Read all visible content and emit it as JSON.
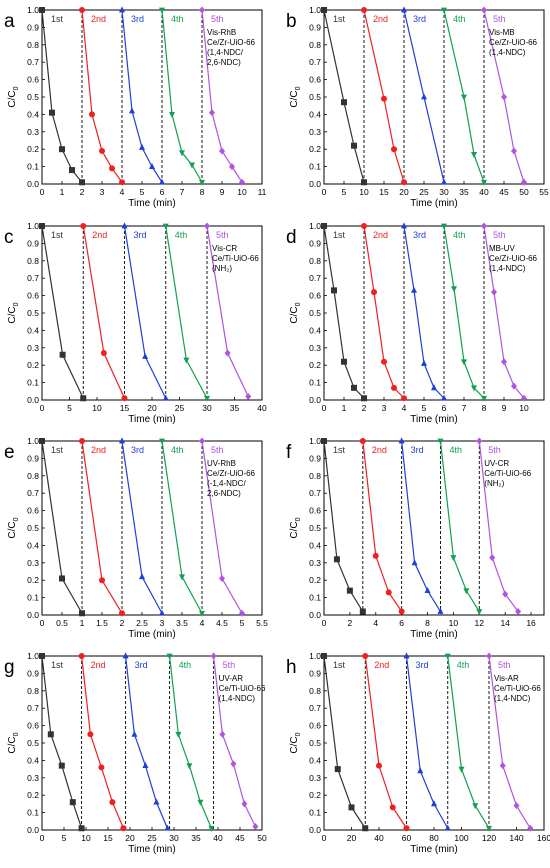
{
  "figure": {
    "ylabel_main": "C/C",
    "ylabel_sub": "0",
    "xlabel": "Time (min)",
    "cycle_labels": [
      "1st",
      "2nd",
      "3rd",
      "4th",
      "5th"
    ],
    "series_colors": [
      "#333333",
      "#ee2020",
      "#1f3fd8",
      "#11a050",
      "#b054e0"
    ],
    "marker_shapes": [
      "square",
      "circle",
      "triangle-up",
      "triangle-down",
      "diamond"
    ]
  },
  "chart_data": [
    {
      "type": "line",
      "panel_letter": "a",
      "xlim": [
        0,
        11
      ],
      "ylim": [
        0,
        1.0
      ],
      "xticks": [
        0,
        1,
        2,
        3,
        4,
        5,
        6,
        7,
        8,
        9,
        10,
        11
      ],
      "yticks": [
        0,
        0.1,
        0.2,
        0.3,
        0.4,
        0.5,
        0.6,
        0.7,
        0.8,
        0.9,
        1.0
      ],
      "annotation": [
        "Vis-RhB",
        "Ce/Zr-UiO-66",
        "(1,4-NDC/",
        "2,6-NDC)"
      ],
      "dividers": [
        2,
        4,
        6,
        8
      ],
      "series": [
        {
          "x": [
            0,
            0.5,
            1,
            1.5,
            2
          ],
          "y": [
            1.0,
            0.41,
            0.2,
            0.08,
            0.01
          ]
        },
        {
          "x": [
            2,
            2.5,
            3,
            3.5,
            4
          ],
          "y": [
            1.0,
            0.4,
            0.19,
            0.09,
            0.01
          ]
        },
        {
          "x": [
            4,
            4.5,
            5,
            5.5,
            6
          ],
          "y": [
            1.0,
            0.42,
            0.21,
            0.1,
            0.01
          ]
        },
        {
          "x": [
            6,
            6.5,
            7,
            7.5,
            8
          ],
          "y": [
            1.0,
            0.4,
            0.18,
            0.11,
            0.01
          ]
        },
        {
          "x": [
            8,
            8.5,
            9,
            9.5,
            10
          ],
          "y": [
            1.0,
            0.41,
            0.19,
            0.1,
            0.01
          ]
        }
      ]
    },
    {
      "type": "line",
      "panel_letter": "b",
      "xlim": [
        0,
        55
      ],
      "ylim": [
        0,
        1.0
      ],
      "xticks": [
        0,
        5,
        10,
        15,
        20,
        25,
        30,
        35,
        40,
        45,
        50,
        55
      ],
      "yticks": [
        0,
        0.1,
        0.2,
        0.3,
        0.4,
        0.5,
        0.6,
        0.7,
        0.8,
        0.9,
        1.0
      ],
      "annotation": [
        "Vis-MB",
        "Ce/Zr-UiO-66",
        "(1,4-NDC)"
      ],
      "dividers": [
        10,
        20,
        30,
        40
      ],
      "series": [
        {
          "x": [
            0,
            5,
            7.5,
            10
          ],
          "y": [
            1.0,
            0.47,
            0.22,
            0.01
          ]
        },
        {
          "x": [
            10,
            15,
            17.5,
            20
          ],
          "y": [
            1.0,
            0.49,
            0.2,
            0.01
          ]
        },
        {
          "x": [
            20,
            25,
            30
          ],
          "y": [
            1.0,
            0.5,
            0.01
          ]
        },
        {
          "x": [
            30,
            35,
            37.5,
            40
          ],
          "y": [
            1.0,
            0.5,
            0.17,
            0.01
          ]
        },
        {
          "x": [
            40,
            45,
            47.5,
            50
          ],
          "y": [
            1.0,
            0.5,
            0.19,
            0.01
          ]
        }
      ]
    },
    {
      "type": "line",
      "panel_letter": "c",
      "xlim": [
        0,
        40
      ],
      "ylim": [
        0,
        1.0
      ],
      "xticks": [
        0,
        5,
        10,
        15,
        20,
        25,
        30,
        35,
        40
      ],
      "yticks": [
        0,
        0.1,
        0.2,
        0.3,
        0.4,
        0.5,
        0.6,
        0.7,
        0.8,
        0.9,
        1.0
      ],
      "annotation": [
        "Vis-CR",
        "Ce/Ti-UiO-66",
        "(NH₂)"
      ],
      "dividers": [
        7.5,
        15,
        22.5,
        30
      ],
      "series": [
        {
          "x": [
            0,
            3.75,
            7.5
          ],
          "y": [
            1.0,
            0.26,
            0.01
          ]
        },
        {
          "x": [
            7.5,
            11.25,
            15
          ],
          "y": [
            1.0,
            0.27,
            0.01
          ]
        },
        {
          "x": [
            15,
            18.75,
            22.5
          ],
          "y": [
            1.0,
            0.25,
            0.01
          ]
        },
        {
          "x": [
            22.5,
            26.25,
            30
          ],
          "y": [
            1.0,
            0.23,
            0.01
          ]
        },
        {
          "x": [
            30,
            33.75,
            37.5
          ],
          "y": [
            1.0,
            0.27,
            0.02
          ]
        }
      ]
    },
    {
      "type": "line",
      "panel_letter": "d",
      "xlim": [
        0,
        11
      ],
      "ylim": [
        0,
        1.0
      ],
      "xticks": [
        0,
        1,
        2,
        3,
        4,
        5,
        6,
        7,
        8,
        9,
        10
      ],
      "yticks": [
        0,
        0.1,
        0.2,
        0.3,
        0.4,
        0.5,
        0.6,
        0.7,
        0.8,
        0.9,
        1.0
      ],
      "annotation": [
        "MB-UV",
        "Ce/Zr-UiO-66",
        "(1,4-NDC)"
      ],
      "dividers": [
        2,
        4,
        6,
        8
      ],
      "series": [
        {
          "x": [
            0,
            0.5,
            1,
            1.5,
            2
          ],
          "y": [
            1.0,
            0.63,
            0.22,
            0.07,
            0.01
          ]
        },
        {
          "x": [
            2,
            2.5,
            3,
            3.5,
            4
          ],
          "y": [
            1.0,
            0.62,
            0.22,
            0.07,
            0.01
          ]
        },
        {
          "x": [
            4,
            4.5,
            5,
            5.5,
            6
          ],
          "y": [
            1.0,
            0.63,
            0.21,
            0.07,
            0.01
          ]
        },
        {
          "x": [
            6,
            6.5,
            7,
            7.5,
            8
          ],
          "y": [
            1.0,
            0.64,
            0.22,
            0.07,
            0.01
          ]
        },
        {
          "x": [
            8,
            8.5,
            9,
            9.5,
            10
          ],
          "y": [
            1.0,
            0.62,
            0.22,
            0.08,
            0.01
          ]
        }
      ]
    },
    {
      "type": "line",
      "panel_letter": "e",
      "xlim": [
        0,
        5.5
      ],
      "ylim": [
        0,
        1.0
      ],
      "xticks": [
        0,
        0.5,
        1,
        1.5,
        2,
        2.5,
        3,
        3.5,
        4,
        4.5,
        5,
        5.5
      ],
      "yticks": [
        0,
        0.1,
        0.2,
        0.3,
        0.4,
        0.5,
        0.6,
        0.7,
        0.8,
        0.9,
        1.0
      ],
      "annotation": [
        "UV-RhB",
        "Ce/Zr-UiO-66",
        "(-1,4-NDC/",
        "2,6-NDC)"
      ],
      "dividers": [
        1,
        2,
        3,
        4
      ],
      "series": [
        {
          "x": [
            0,
            0.5,
            1
          ],
          "y": [
            1.0,
            0.21,
            0.01
          ]
        },
        {
          "x": [
            1,
            1.5,
            2
          ],
          "y": [
            1.0,
            0.2,
            0.01
          ]
        },
        {
          "x": [
            2,
            2.5,
            3
          ],
          "y": [
            1.0,
            0.22,
            0.01
          ]
        },
        {
          "x": [
            3,
            3.5,
            4
          ],
          "y": [
            1.0,
            0.22,
            0.01
          ]
        },
        {
          "x": [
            4,
            4.5,
            5
          ],
          "y": [
            1.0,
            0.21,
            0.01
          ]
        }
      ]
    },
    {
      "type": "line",
      "panel_letter": "f",
      "xlim": [
        0,
        17
      ],
      "ylim": [
        0,
        1.0
      ],
      "xticks": [
        0,
        2,
        4,
        6,
        8,
        10,
        12,
        14,
        16
      ],
      "yticks": [
        0,
        0.1,
        0.2,
        0.3,
        0.4,
        0.5,
        0.6,
        0.7,
        0.8,
        0.9,
        1.0
      ],
      "annotation": [
        "UV-CR",
        "Ce/Ti-UiO-66",
        "(NH₂)"
      ],
      "dividers": [
        3,
        6,
        9,
        12
      ],
      "series": [
        {
          "x": [
            0,
            1,
            2,
            3
          ],
          "y": [
            1.0,
            0.32,
            0.14,
            0.02
          ]
        },
        {
          "x": [
            3,
            4,
            5,
            6
          ],
          "y": [
            1.0,
            0.34,
            0.13,
            0.02
          ]
        },
        {
          "x": [
            6,
            7,
            8,
            9
          ],
          "y": [
            1.0,
            0.3,
            0.14,
            0.02
          ]
        },
        {
          "x": [
            9,
            10,
            11,
            12
          ],
          "y": [
            1.0,
            0.33,
            0.14,
            0.02
          ]
        },
        {
          "x": [
            12,
            13,
            14,
            15
          ],
          "y": [
            1.0,
            0.33,
            0.12,
            0.02
          ]
        }
      ]
    },
    {
      "type": "line",
      "panel_letter": "g",
      "xlim": [
        0,
        50
      ],
      "ylim": [
        0,
        1.0
      ],
      "xticks": [
        0,
        5,
        10,
        15,
        20,
        25,
        30,
        35,
        40,
        45,
        50
      ],
      "yticks": [
        0,
        0.1,
        0.2,
        0.3,
        0.4,
        0.5,
        0.6,
        0.7,
        0.8,
        0.9,
        1.0
      ],
      "annotation": [
        "UV-AR",
        "Ce/Ti-UiO-66",
        "(1,4-NDC)"
      ],
      "dividers": [
        9,
        19,
        29,
        39
      ],
      "series": [
        {
          "x": [
            0,
            2,
            4.5,
            7,
            9
          ],
          "y": [
            1.0,
            0.55,
            0.37,
            0.16,
            0.01
          ]
        },
        {
          "x": [
            9,
            11,
            13.5,
            16,
            18.5
          ],
          "y": [
            1.0,
            0.55,
            0.36,
            0.16,
            0.01
          ]
        },
        {
          "x": [
            19,
            21,
            23.5,
            26,
            28.5
          ],
          "y": [
            1.0,
            0.55,
            0.37,
            0.16,
            0.01
          ]
        },
        {
          "x": [
            29,
            31,
            33.5,
            36,
            38.5
          ],
          "y": [
            1.0,
            0.55,
            0.37,
            0.16,
            0.01
          ]
        },
        {
          "x": [
            39,
            41,
            43.5,
            46,
            48.5
          ],
          "y": [
            1.0,
            0.55,
            0.38,
            0.15,
            0.02
          ]
        }
      ]
    },
    {
      "type": "line",
      "panel_letter": "h",
      "xlim": [
        0,
        160
      ],
      "ylim": [
        0,
        1.0
      ],
      "xticks": [
        0,
        20,
        40,
        60,
        80,
        100,
        120,
        140,
        160
      ],
      "yticks": [
        0,
        0.1,
        0.2,
        0.3,
        0.4,
        0.5,
        0.6,
        0.7,
        0.8,
        0.9,
        1.0
      ],
      "annotation": [
        "Vis-AR",
        "Ce/Ti-UiO-66",
        "(1,4-NDC)"
      ],
      "dividers": [
        30,
        60,
        90,
        120
      ],
      "series": [
        {
          "x": [
            0,
            10,
            20,
            30
          ],
          "y": [
            1.0,
            0.35,
            0.13,
            0.01
          ]
        },
        {
          "x": [
            30,
            40,
            50,
            60
          ],
          "y": [
            1.0,
            0.37,
            0.13,
            0.01
          ]
        },
        {
          "x": [
            60,
            70,
            80,
            90
          ],
          "y": [
            1.0,
            0.34,
            0.15,
            0.01
          ]
        },
        {
          "x": [
            90,
            100,
            110,
            120
          ],
          "y": [
            1.0,
            0.35,
            0.14,
            0.01
          ]
        },
        {
          "x": [
            120,
            130,
            140,
            150
          ],
          "y": [
            1.0,
            0.37,
            0.14,
            0.01
          ]
        }
      ]
    }
  ]
}
